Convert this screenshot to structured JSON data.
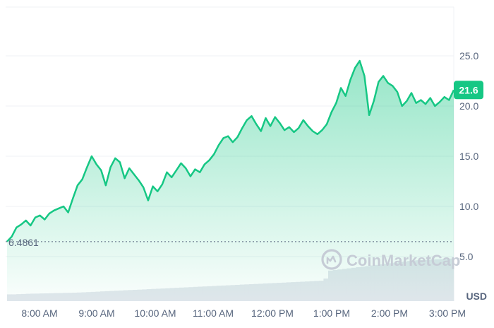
{
  "chart_data": {
    "type": "area",
    "title": "",
    "xlabel": "",
    "ylabel": "",
    "unit_label": "USD",
    "watermark": "CoinMarketCap",
    "x_tick_labels": [
      "8:00 AM",
      "9:00 AM",
      "10:00 AM",
      "11:00 AM",
      "12:00 PM",
      "1:00 PM",
      "2:00 PM",
      "3:00 PM"
    ],
    "y_tick_labels": [
      "5.0",
      "10.0",
      "15.0",
      "20.0",
      "25.0"
    ],
    "y_ticks": [
      5,
      10,
      15,
      20,
      25
    ],
    "ylim": [
      0,
      30
    ],
    "grid": true,
    "baseline_value": 6.4861,
    "baseline_label": "6.4861",
    "current_value": 21.6,
    "current_label": "21.6",
    "series_color": "#16c784",
    "price_series": [
      {
        "t": "7:40 AM",
        "v": 6.5
      },
      {
        "t": "7:45 AM",
        "v": 7.0
      },
      {
        "t": "7:50 AM",
        "v": 7.9
      },
      {
        "t": "7:55 AM",
        "v": 8.2
      },
      {
        "t": "8:00 AM",
        "v": 8.6
      },
      {
        "t": "8:05 AM",
        "v": 8.1
      },
      {
        "t": "8:10 AM",
        "v": 8.9
      },
      {
        "t": "8:15 AM",
        "v": 9.1
      },
      {
        "t": "8:20 AM",
        "v": 8.7
      },
      {
        "t": "8:25 AM",
        "v": 9.3
      },
      {
        "t": "8:30 AM",
        "v": 9.6
      },
      {
        "t": "8:35 AM",
        "v": 9.8
      },
      {
        "t": "8:40 AM",
        "v": 10.0
      },
      {
        "t": "8:45 AM",
        "v": 9.4
      },
      {
        "t": "8:50 AM",
        "v": 10.8
      },
      {
        "t": "8:55 AM",
        "v": 12.1
      },
      {
        "t": "9:00 AM",
        "v": 12.7
      },
      {
        "t": "9:05 AM",
        "v": 13.9
      },
      {
        "t": "9:10 AM",
        "v": 15.0
      },
      {
        "t": "9:15 AM",
        "v": 14.2
      },
      {
        "t": "9:20 AM",
        "v": 13.6
      },
      {
        "t": "9:22 AM",
        "v": 12.1
      },
      {
        "t": "9:25 AM",
        "v": 13.9
      },
      {
        "t": "9:30 AM",
        "v": 14.8
      },
      {
        "t": "9:35 AM",
        "v": 14.4
      },
      {
        "t": "9:38 AM",
        "v": 12.8
      },
      {
        "t": "9:42 AM",
        "v": 13.8
      },
      {
        "t": "9:45 AM",
        "v": 13.2
      },
      {
        "t": "9:50 AM",
        "v": 12.6
      },
      {
        "t": "9:55 AM",
        "v": 11.9
      },
      {
        "t": "9:58 AM",
        "v": 10.6
      },
      {
        "t": "10:00 AM",
        "v": 12.0
      },
      {
        "t": "10:05 AM",
        "v": 11.5
      },
      {
        "t": "10:08 AM",
        "v": 12.2
      },
      {
        "t": "10:10 AM",
        "v": 13.4
      },
      {
        "t": "10:15 AM",
        "v": 12.9
      },
      {
        "t": "10:20 AM",
        "v": 13.6
      },
      {
        "t": "10:25 AM",
        "v": 14.3
      },
      {
        "t": "10:30 AM",
        "v": 13.8
      },
      {
        "t": "10:35 AM",
        "v": 13.0
      },
      {
        "t": "10:40 AM",
        "v": 13.7
      },
      {
        "t": "10:45 AM",
        "v": 13.4
      },
      {
        "t": "10:50 AM",
        "v": 14.2
      },
      {
        "t": "10:55 AM",
        "v": 14.6
      },
      {
        "t": "11:00 AM",
        "v": 15.2
      },
      {
        "t": "11:05 AM",
        "v": 16.1
      },
      {
        "t": "11:10 AM",
        "v": 16.8
      },
      {
        "t": "11:15 AM",
        "v": 17.0
      },
      {
        "t": "11:20 AM",
        "v": 16.4
      },
      {
        "t": "11:25 AM",
        "v": 16.9
      },
      {
        "t": "11:30 AM",
        "v": 17.8
      },
      {
        "t": "11:35 AM",
        "v": 18.6
      },
      {
        "t": "11:40 AM",
        "v": 19.0
      },
      {
        "t": "11:45 AM",
        "v": 18.2
      },
      {
        "t": "11:50 AM",
        "v": 17.5
      },
      {
        "t": "11:55 AM",
        "v": 18.8
      },
      {
        "t": "12:00 PM",
        "v": 18.0
      },
      {
        "t": "12:05 PM",
        "v": 18.9
      },
      {
        "t": "12:10 PM",
        "v": 18.3
      },
      {
        "t": "12:15 PM",
        "v": 17.6
      },
      {
        "t": "12:20 PM",
        "v": 17.9
      },
      {
        "t": "12:25 PM",
        "v": 17.4
      },
      {
        "t": "12:30 PM",
        "v": 17.8
      },
      {
        "t": "12:35 PM",
        "v": 18.6
      },
      {
        "t": "12:40 PM",
        "v": 18.0
      },
      {
        "t": "12:45 PM",
        "v": 17.5
      },
      {
        "t": "12:50 PM",
        "v": 17.2
      },
      {
        "t": "12:55 PM",
        "v": 17.6
      },
      {
        "t": "1:00 PM",
        "v": 18.2
      },
      {
        "t": "1:05 PM",
        "v": 19.4
      },
      {
        "t": "1:10 PM",
        "v": 20.3
      },
      {
        "t": "1:15 PM",
        "v": 21.8
      },
      {
        "t": "1:20 PM",
        "v": 21.0
      },
      {
        "t": "1:25 PM",
        "v": 22.6
      },
      {
        "t": "1:30 PM",
        "v": 23.8
      },
      {
        "t": "1:35 PM",
        "v": 24.5
      },
      {
        "t": "1:38 PM",
        "v": 23.0
      },
      {
        "t": "1:40 PM",
        "v": 19.1
      },
      {
        "t": "1:42 PM",
        "v": 20.5
      },
      {
        "t": "1:45 PM",
        "v": 22.4
      },
      {
        "t": "1:50 PM",
        "v": 23.0
      },
      {
        "t": "1:55 PM",
        "v": 22.3
      },
      {
        "t": "2:00 PM",
        "v": 22.0
      },
      {
        "t": "2:05 PM",
        "v": 21.4
      },
      {
        "t": "2:08 PM",
        "v": 20.0
      },
      {
        "t": "2:12 PM",
        "v": 20.5
      },
      {
        "t": "2:15 PM",
        "v": 21.3
      },
      {
        "t": "2:20 PM",
        "v": 20.3
      },
      {
        "t": "2:25 PM",
        "v": 20.6
      },
      {
        "t": "2:30 PM",
        "v": 20.2
      },
      {
        "t": "2:35 PM",
        "v": 20.8
      },
      {
        "t": "2:40 PM",
        "v": 20.0
      },
      {
        "t": "2:45 PM",
        "v": 20.4
      },
      {
        "t": "2:50 PM",
        "v": 20.9
      },
      {
        "t": "2:55 PM",
        "v": 20.6
      },
      {
        "t": "3:00 PM",
        "v": 21.6
      }
    ],
    "volume_series": [
      0.6,
      0.6,
      0.62,
      0.63,
      0.65,
      0.66,
      0.67,
      0.68,
      0.69,
      0.7,
      0.71,
      0.72,
      0.73,
      0.74,
      0.75,
      0.76,
      0.78,
      0.8,
      0.82,
      0.84,
      0.86,
      0.88,
      0.9,
      0.92,
      0.94,
      0.96,
      0.98,
      1.0,
      1.02,
      1.04,
      1.06,
      1.08,
      1.1,
      1.12,
      1.14,
      1.16,
      1.18,
      1.2,
      1.22,
      1.24,
      1.26,
      1.28,
      1.3,
      1.32,
      1.34,
      1.36,
      1.38,
      1.4,
      1.42,
      1.44,
      1.46,
      1.48,
      1.5,
      1.52,
      1.54,
      1.56,
      1.58,
      1.6,
      1.62,
      1.64,
      1.66,
      1.68,
      1.7,
      1.72,
      1.74,
      1.76,
      1.78,
      1.8,
      2.0,
      2.7,
      2.75,
      2.8,
      2.85,
      2.9,
      2.95,
      3.0,
      3.05,
      3.1,
      3.15,
      3.2,
      3.25,
      3.3,
      3.35,
      3.4,
      3.45,
      3.5,
      3.55,
      3.6,
      3.62,
      3.64,
      3.66,
      3.68,
      3.7,
      3.72,
      3.74,
      3.76
    ]
  }
}
